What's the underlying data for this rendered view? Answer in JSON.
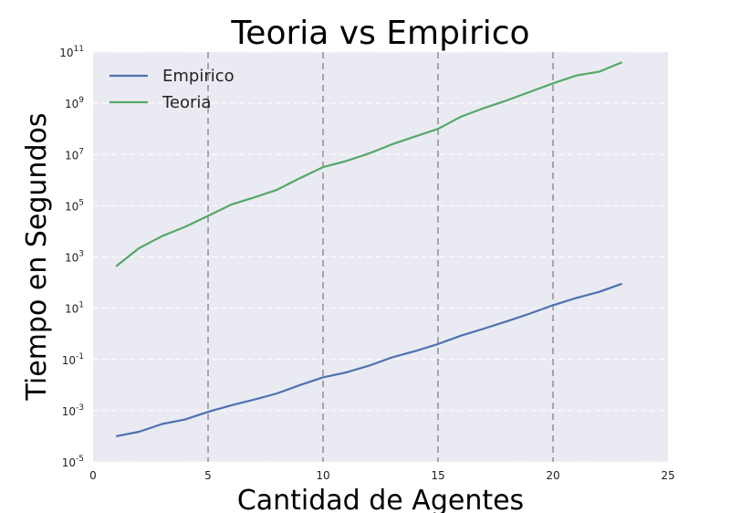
{
  "chart_data": {
    "type": "line",
    "title": "Teoria vs Empirico",
    "xlabel": "Cantidad de Agentes",
    "ylabel": "Tiempo en Segundos",
    "xlim": [
      0,
      25
    ],
    "ylim": [
      1e-05,
      100000000000
    ],
    "yscale": "log",
    "x_ticks": [
      0,
      5,
      10,
      15,
      20,
      25
    ],
    "y_ticks": [
      {
        "base": "10",
        "exp": "-5"
      },
      {
        "base": "10",
        "exp": "-3"
      },
      {
        "base": "10",
        "exp": "-1"
      },
      {
        "base": "10",
        "exp": "1"
      },
      {
        "base": "10",
        "exp": "3"
      },
      {
        "base": "10",
        "exp": "5"
      },
      {
        "base": "10",
        "exp": "7"
      },
      {
        "base": "10",
        "exp": "9"
      },
      {
        "base": "10",
        "exp": "11"
      }
    ],
    "vertical_grid": "dashed",
    "legend_position": "top-left",
    "x": [
      1,
      2,
      3,
      4,
      5,
      6,
      7,
      8,
      9,
      10,
      11,
      12,
      13,
      14,
      15,
      16,
      17,
      18,
      19,
      20,
      21,
      22,
      23
    ],
    "series": [
      {
        "name": "Empirico",
        "color": "#4c72b0",
        "values": [
          0.0001,
          0.00015,
          0.0003,
          0.00045,
          0.0009,
          0.0016,
          0.0027,
          0.0047,
          0.01,
          0.02,
          0.031,
          0.057,
          0.12,
          0.21,
          0.4,
          0.85,
          1.6,
          3.1,
          6.2,
          13,
          25,
          43,
          90
        ]
      },
      {
        "name": "Teoria",
        "color": "#55a868",
        "values": [
          430,
          2200,
          6500,
          15000,
          40000,
          110000,
          210000,
          420000,
          1200000,
          3200000,
          5500000,
          11000000,
          25000000,
          50000000,
          100000000,
          300000000,
          650000000,
          1300000000,
          2800000000,
          6000000000,
          12000000000,
          17000000000,
          40000000000
        ]
      }
    ]
  }
}
